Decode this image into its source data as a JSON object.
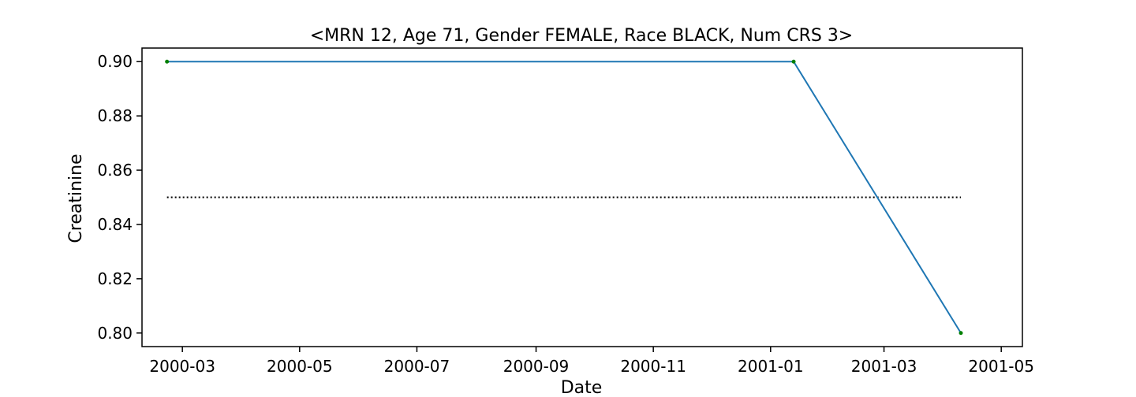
{
  "chart_data": {
    "type": "line",
    "title": "<MRN 12, Age 71, Gender FEMALE, Race BLACK, Num CRS 3>",
    "xlabel": "Date",
    "ylabel": "Creatinine",
    "x_ticks": [
      "2000-03",
      "2000-05",
      "2000-07",
      "2000-09",
      "2000-11",
      "2001-01",
      "2001-03",
      "2001-05"
    ],
    "y_ticks": [
      "0.80",
      "0.82",
      "0.84",
      "0.86",
      "0.88",
      "0.90"
    ],
    "xlim": [
      "2000-02-09",
      "2001-05-12"
    ],
    "ylim": [
      0.795,
      0.905
    ],
    "grid": false,
    "series": [
      {
        "name": "Creatinine",
        "color": "#1f77b4",
        "marker_color": "#008000",
        "x": [
          "2000-02-22",
          "2001-01-13",
          "2001-04-10"
        ],
        "values": [
          0.9,
          0.9,
          0.8
        ]
      }
    ],
    "reference_line": {
      "style": "dotted",
      "color": "#000000",
      "value": 0.85,
      "x_start": "2000-02-22",
      "x_end": "2001-04-10"
    }
  }
}
